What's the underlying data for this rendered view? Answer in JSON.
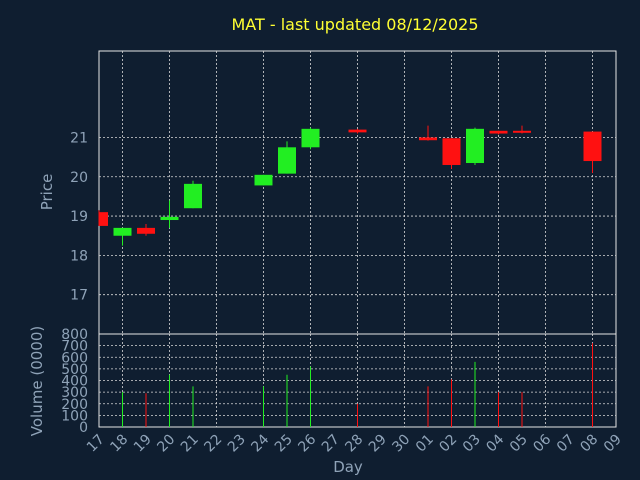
{
  "chart_data": [
    {
      "type": "candlestick",
      "title": "MAT - last updated 08/12/2025",
      "ylabel": "Price",
      "ylim": [
        16.0,
        23.2
      ],
      "yticks": [
        17,
        18,
        19,
        20,
        21
      ],
      "candles": [
        {
          "date": "17",
          "open": 19.1,
          "high": 19.15,
          "low": 18.75,
          "close": 18.75
        },
        {
          "date": "18",
          "open": 18.5,
          "high": 18.7,
          "low": 18.25,
          "close": 18.7
        },
        {
          "date": "19",
          "open": 18.7,
          "high": 18.8,
          "low": 18.5,
          "close": 18.55
        },
        {
          "date": "20",
          "open": 18.9,
          "high": 19.4,
          "low": 18.7,
          "close": 18.98
        },
        {
          "date": "21",
          "open": 19.2,
          "high": 19.9,
          "low": 19.2,
          "close": 19.82
        },
        {
          "date": "24",
          "open": 19.78,
          "high": 20.05,
          "low": 19.78,
          "close": 20.05
        },
        {
          "date": "25",
          "open": 20.08,
          "high": 20.9,
          "low": 20.08,
          "close": 20.75
        },
        {
          "date": "26",
          "open": 20.75,
          "high": 21.25,
          "low": 20.7,
          "close": 21.22
        },
        {
          "date": "28",
          "open": 21.2,
          "high": 21.22,
          "low": 21.1,
          "close": 21.13
        },
        {
          "date": "01",
          "open": 21.0,
          "high": 21.3,
          "low": 20.92,
          "close": 20.93
        },
        {
          "date": "02",
          "open": 20.98,
          "high": 20.98,
          "low": 20.2,
          "close": 20.3
        },
        {
          "date": "03",
          "open": 20.35,
          "high": 21.25,
          "low": 20.3,
          "close": 21.22
        },
        {
          "date": "04",
          "open": 21.17,
          "high": 21.17,
          "low": 21.08,
          "close": 21.1
        },
        {
          "date": "05",
          "open": 21.17,
          "high": 21.3,
          "low": 21.1,
          "close": 21.13
        },
        {
          "date": "08",
          "open": 21.15,
          "high": 21.15,
          "low": 20.1,
          "close": 20.4
        }
      ]
    },
    {
      "type": "bar",
      "ylabel": "Volume (0000)",
      "xlabel": "Day",
      "ylim": [
        0,
        800
      ],
      "yticks": [
        0,
        100,
        200,
        300,
        400,
        500,
        600,
        700,
        800
      ],
      "volumes": [
        {
          "date": "17",
          "value": 0,
          "direction": "down"
        },
        {
          "date": "18",
          "value": 300,
          "direction": "up"
        },
        {
          "date": "19",
          "value": 290,
          "direction": "down"
        },
        {
          "date": "20",
          "value": 450,
          "direction": "up"
        },
        {
          "date": "21",
          "value": 350,
          "direction": "up"
        },
        {
          "date": "24",
          "value": 350,
          "direction": "up"
        },
        {
          "date": "25",
          "value": 450,
          "direction": "up"
        },
        {
          "date": "26",
          "value": 520,
          "direction": "up"
        },
        {
          "date": "28",
          "value": 200,
          "direction": "down"
        },
        {
          "date": "01",
          "value": 350,
          "direction": "down"
        },
        {
          "date": "02",
          "value": 410,
          "direction": "down"
        },
        {
          "date": "03",
          "value": 560,
          "direction": "up"
        },
        {
          "date": "04",
          "value": 300,
          "direction": "down"
        },
        {
          "date": "05",
          "value": 300,
          "direction": "down"
        },
        {
          "date": "08",
          "value": 720,
          "direction": "down"
        }
      ]
    }
  ],
  "x_ticks": [
    "17",
    "18",
    "19",
    "20",
    "21",
    "22",
    "23",
    "24",
    "25",
    "26",
    "27",
    "28",
    "29",
    "30",
    "01",
    "02",
    "03",
    "04",
    "05",
    "06",
    "07",
    "08",
    "09"
  ],
  "colors": {
    "up": "#22ee22",
    "down": "#ff1111",
    "title": "#ffff33",
    "text": "#8fa3b8",
    "grid": "#d8d8d8"
  }
}
